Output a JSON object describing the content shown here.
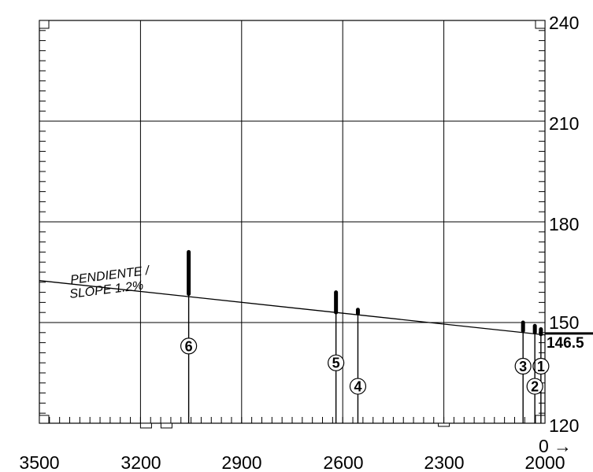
{
  "x_axis": {
    "ticks": [
      "3500",
      "3200",
      "2900",
      "2600",
      "2300",
      "2000"
    ],
    "tick_values": [
      3500,
      3200,
      2900,
      2600,
      2300,
      2000
    ]
  },
  "y_axis": {
    "ticks": [
      "240",
      "210",
      "180",
      "150",
      "120"
    ],
    "tick_values": [
      240,
      210,
      180,
      150,
      120
    ],
    "zero_label": "0",
    "arrow_glyph": "→"
  },
  "reference_level": {
    "label": "146.5",
    "value": 146.5
  },
  "slope_label": {
    "line1": "PENDIENTE /",
    "line2": "SLOPE 1.2%"
  },
  "slope_line": {
    "x_start": 3500,
    "y_start": 162.5,
    "x_end": 2000,
    "y_end": 146.3
  },
  "markers": [
    {
      "id": "1",
      "x": 2012,
      "top": 148.0,
      "bar_top": 148.0,
      "bar_bottom": 147.0,
      "label_y": 137.0
    },
    {
      "id": "2",
      "x": 2030,
      "top": 149.0,
      "bar_top": 149.0,
      "bar_bottom": 147.5,
      "label_y": 131.0
    },
    {
      "id": "3",
      "x": 2065,
      "top": 150.0,
      "bar_top": 150.0,
      "bar_bottom": 148.0,
      "label_y": 137.0
    },
    {
      "id": "4",
      "x": 2555,
      "top": 153.8,
      "bar_top": 153.8,
      "bar_bottom": 153.2,
      "label_y": 131.0
    },
    {
      "id": "5",
      "x": 2620,
      "top": 159.0,
      "bar_top": 159.0,
      "bar_bottom": 153.5,
      "label_y": 138.0
    },
    {
      "id": "6",
      "x": 3057,
      "top": 171.0,
      "bar_top": 171.0,
      "bar_bottom": 159.0,
      "label_y": 143.0
    }
  ]
}
